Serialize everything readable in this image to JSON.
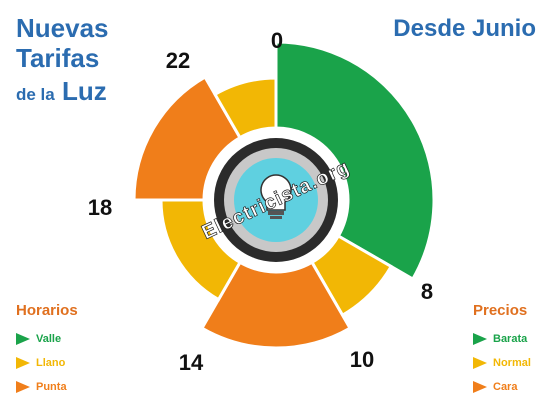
{
  "header": {
    "title_line1": "Nuevas",
    "title_line2": "Tarifas",
    "title_line3_small": "de la",
    "title_line3_big": "Luz",
    "subtitle": "Desde Junio"
  },
  "logo_text": "Electricista.org",
  "chart_data": {
    "type": "pie",
    "title": "Nuevas Tarifas de la Luz",
    "subtitle": "Desde Junio",
    "hour_labels": [
      "0",
      "8",
      "10",
      "14",
      "18",
      "22"
    ],
    "segments": [
      {
        "start": 0,
        "end": 8,
        "period": "Valle",
        "color": "#1aa34a"
      },
      {
        "start": 8,
        "end": 10,
        "period": "Llano",
        "color": "#f2b705"
      },
      {
        "start": 10,
        "end": 14,
        "period": "Punta",
        "color": "#f07e1a"
      },
      {
        "start": 14,
        "end": 18,
        "period": "Llano",
        "color": "#f2b705"
      },
      {
        "start": 18,
        "end": 22,
        "period": "Punta",
        "color": "#f07e1a"
      },
      {
        "start": 22,
        "end": 24,
        "period": "Llano",
        "color": "#f2b705"
      }
    ]
  },
  "legend_left": {
    "title": "Horarios",
    "items": [
      {
        "label": "Valle",
        "color": "#1aa34a"
      },
      {
        "label": "Llano",
        "color": "#f2b705"
      },
      {
        "label": "Punta",
        "color": "#f07e1a"
      }
    ]
  },
  "legend_right": {
    "title": "Precios",
    "items": [
      {
        "label": "Barata",
        "color": "#1aa34a"
      },
      {
        "label": "Normal",
        "color": "#f2b705"
      },
      {
        "label": "Cara",
        "color": "#f07e1a"
      }
    ]
  }
}
